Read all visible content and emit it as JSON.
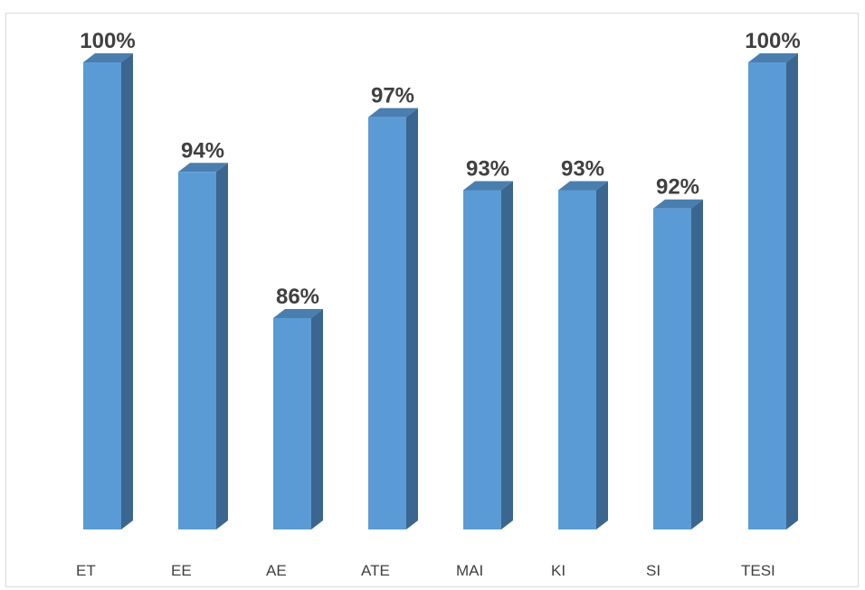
{
  "chart_data": {
    "type": "bar",
    "style": "3d-column",
    "categories": [
      "ET",
      "EE",
      "AE",
      "ATE",
      "MAI",
      "KI",
      "SI",
      "TESI"
    ],
    "values": [
      100,
      94,
      86,
      97,
      93,
      93,
      92,
      100
    ],
    "value_labels": [
      "100%",
      "94%",
      "86%",
      "97%",
      "93%",
      "93%",
      "92%",
      "100%"
    ],
    "unit": "%",
    "ylim": [
      75,
      100
    ],
    "grid": false,
    "legend": "none",
    "colors": {
      "front": "#5b9bd5",
      "side": "#3a6690",
      "top": "#4a7eae",
      "text": "#404040"
    }
  }
}
